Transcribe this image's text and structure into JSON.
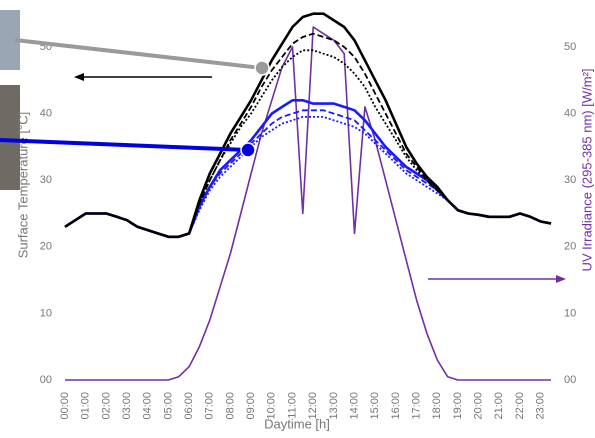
{
  "chart_data": {
    "type": "line",
    "x_label": "Daytime [h]",
    "y_label": "Surface Temperature [°C]",
    "y2_label": "UV Irradiance (295-385 nm) [W/m²]",
    "categories": [
      "00:00",
      null,
      "01:00",
      null,
      "02:00",
      null,
      "03:00",
      null,
      "04:00",
      null,
      "05:00",
      null,
      "06:00",
      null,
      "07:00",
      null,
      "08:00",
      null,
      "09:00",
      null,
      "10:00",
      null,
      "11:00",
      null,
      "12:00",
      null,
      "13:00",
      null,
      "14:00",
      null,
      "15:00",
      null,
      "16:00",
      null,
      "17:00",
      null,
      "18:00",
      null,
      "19:00",
      null,
      "20:00",
      null,
      "21:00",
      null,
      "22:00",
      null,
      "23:00",
      null
    ],
    "ylim": [
      0,
      55
    ],
    "yticks": [
      {
        "value": 0,
        "label": "00"
      },
      10,
      20,
      30,
      40,
      50
    ],
    "y2lim": [
      0,
      55
    ],
    "y2ticks": [
      {
        "value": 0,
        "label": "00"
      },
      10,
      20,
      30,
      40,
      50
    ],
    "grid": false,
    "series": [
      {
        "color": "#000000",
        "linestyle": "solid",
        "values": [
          23,
          24,
          25,
          25,
          25,
          24.5,
          24,
          23,
          22.5,
          22,
          21.5,
          21.5,
          22,
          27,
          31,
          34,
          37,
          39.5,
          42,
          45,
          48,
          50.5,
          53,
          54.5,
          55,
          55,
          54,
          53,
          51,
          48,
          45,
          42,
          38.5,
          35,
          32.5,
          30.5,
          29,
          27,
          25.5,
          25,
          24.8,
          24.5,
          24.5,
          24.5,
          25,
          24.5,
          23.8,
          23.5
        ]
      },
      {
        "color": "#000000",
        "linestyle": "dashed",
        "values": [
          23,
          24,
          25,
          25,
          25,
          24.5,
          24,
          23,
          22.5,
          22,
          21.5,
          21.5,
          22,
          26.5,
          30,
          33,
          36,
          38.5,
          41,
          44,
          46.5,
          48.5,
          50.5,
          51.5,
          52,
          51.5,
          51,
          50,
          48.5,
          46,
          43,
          40,
          37,
          34,
          32,
          30,
          28.5,
          27,
          25.5,
          25,
          24.8,
          24.5,
          24.5,
          24.5,
          25,
          24.5,
          23.8,
          23.5
        ]
      },
      {
        "color": "#000000",
        "linestyle": "dotted",
        "values": [
          23,
          24,
          25,
          25,
          25,
          24.5,
          24,
          23,
          22.5,
          22,
          21.5,
          21.5,
          22,
          26.5,
          30,
          33,
          35.5,
          38,
          40,
          42.5,
          45,
          47,
          48.5,
          49.5,
          49.5,
          49,
          48.5,
          47.5,
          46,
          44,
          41,
          38.5,
          36,
          33.5,
          31.5,
          30,
          28.5,
          27,
          25.5,
          25,
          24.8,
          24.5,
          24.5,
          24.5,
          25,
          24.5,
          23.8,
          23.5
        ]
      },
      {
        "color": "#1a1aff",
        "linestyle": "solid",
        "values": [
          23,
          24,
          25,
          25,
          25,
          24.5,
          24,
          23,
          22.5,
          22,
          21.5,
          21.5,
          22,
          26,
          29,
          31.5,
          33,
          34.5,
          36,
          38,
          40,
          41,
          42,
          42,
          41.5,
          41.5,
          41.5,
          41,
          40.5,
          39,
          37,
          35,
          33.5,
          32,
          31,
          30,
          28.5,
          27,
          25.5,
          25,
          24.8,
          24.5,
          24.5,
          24.5,
          25,
          24.5,
          23.8,
          23.5
        ]
      },
      {
        "color": "#1a1aff",
        "linestyle": "dashed",
        "values": [
          23,
          24,
          25,
          25,
          25,
          24.5,
          24,
          23,
          22.5,
          22,
          21.5,
          21.5,
          22,
          26,
          29,
          31,
          32.5,
          34,
          35.5,
          37,
          38.5,
          39.5,
          40,
          40.5,
          40.5,
          40.5,
          40,
          39.5,
          39,
          37.5,
          36,
          34.5,
          33,
          31.5,
          30.5,
          29.5,
          28.5,
          27,
          25.5,
          25,
          24.8,
          24.5,
          24.5,
          24.5,
          25,
          24.5,
          23.8,
          23.5
        ]
      },
      {
        "color": "#1a1aff",
        "linestyle": "dotted",
        "values": [
          23,
          24,
          25,
          25,
          25,
          24.5,
          24,
          23,
          22.5,
          22,
          21.5,
          21.5,
          22,
          25.5,
          28.5,
          30.5,
          32,
          33.5,
          35,
          36.5,
          37.5,
          38.5,
          39,
          39.5,
          39.5,
          39.5,
          39,
          38.5,
          38,
          37,
          35.5,
          34,
          32.5,
          31,
          30,
          29,
          28,
          27,
          25.5,
          25,
          24.8,
          24.5,
          24.5,
          24.5,
          25,
          24.5,
          23.8,
          23.5
        ]
      },
      {
        "color": "#7030a0",
        "linestyle": "solid",
        "axis": "y2",
        "values": [
          0,
          0,
          0,
          0,
          0,
          0,
          0,
          0,
          0,
          0,
          0,
          0.5,
          2,
          5,
          9,
          14,
          19,
          25,
          31,
          37,
          42,
          47,
          50,
          25,
          53,
          52,
          51,
          49,
          22,
          41,
          36,
          30,
          24,
          18,
          12,
          7,
          3,
          0.5,
          0,
          0,
          0,
          0,
          0,
          0,
          0,
          0,
          0,
          0
        ]
      }
    ]
  }
}
